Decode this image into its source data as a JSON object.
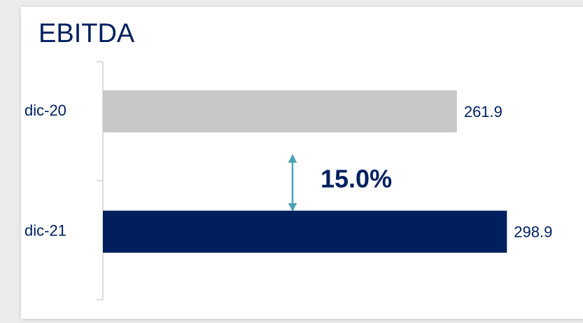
{
  "chart_data": {
    "type": "barh",
    "title": "EBITDA",
    "categories": [
      "dic-20",
      "dic-21"
    ],
    "values": [
      261.9,
      298.9
    ],
    "colors": [
      "#c8c8c8",
      "#001f5c"
    ],
    "xlim": [
      0,
      350
    ],
    "annotation": "15.0%"
  }
}
